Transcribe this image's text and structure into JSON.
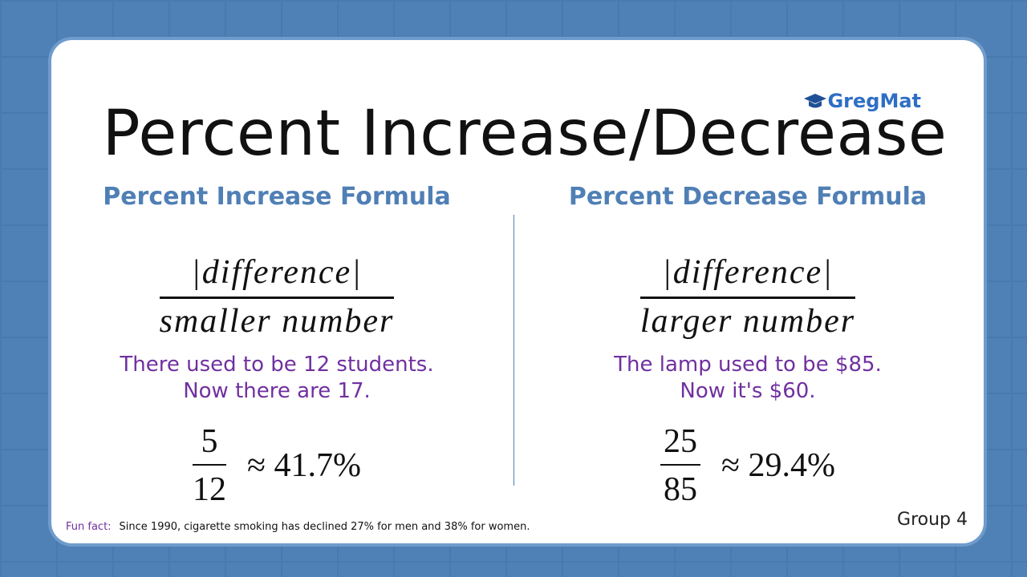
{
  "logo": "GregMat",
  "title": "Percent Increase/Decrease",
  "panels": [
    {
      "heading": "Percent Increase Formula",
      "numerator": "|difference|",
      "denominator": "smaller number",
      "example": [
        "There used to be 12 students.",
        "Now there are 17."
      ],
      "result": {
        "numerator": "5",
        "denominator": "12",
        "approx": "≈ 41.7%"
      }
    },
    {
      "heading": "Percent Decrease Formula",
      "numerator": "|difference|",
      "denominator": "larger number",
      "example": [
        "The lamp used to be $85.",
        "Now it's $60."
      ],
      "result": {
        "numerator": "25",
        "denominator": "85",
        "approx": "≈ 29.4%"
      }
    }
  ],
  "fun_fact": {
    "label": "Fun fact:",
    "text": "Since 1990, cigarette smoking has declined 27% for men and 38% for women."
  },
  "footer": "Group 4"
}
